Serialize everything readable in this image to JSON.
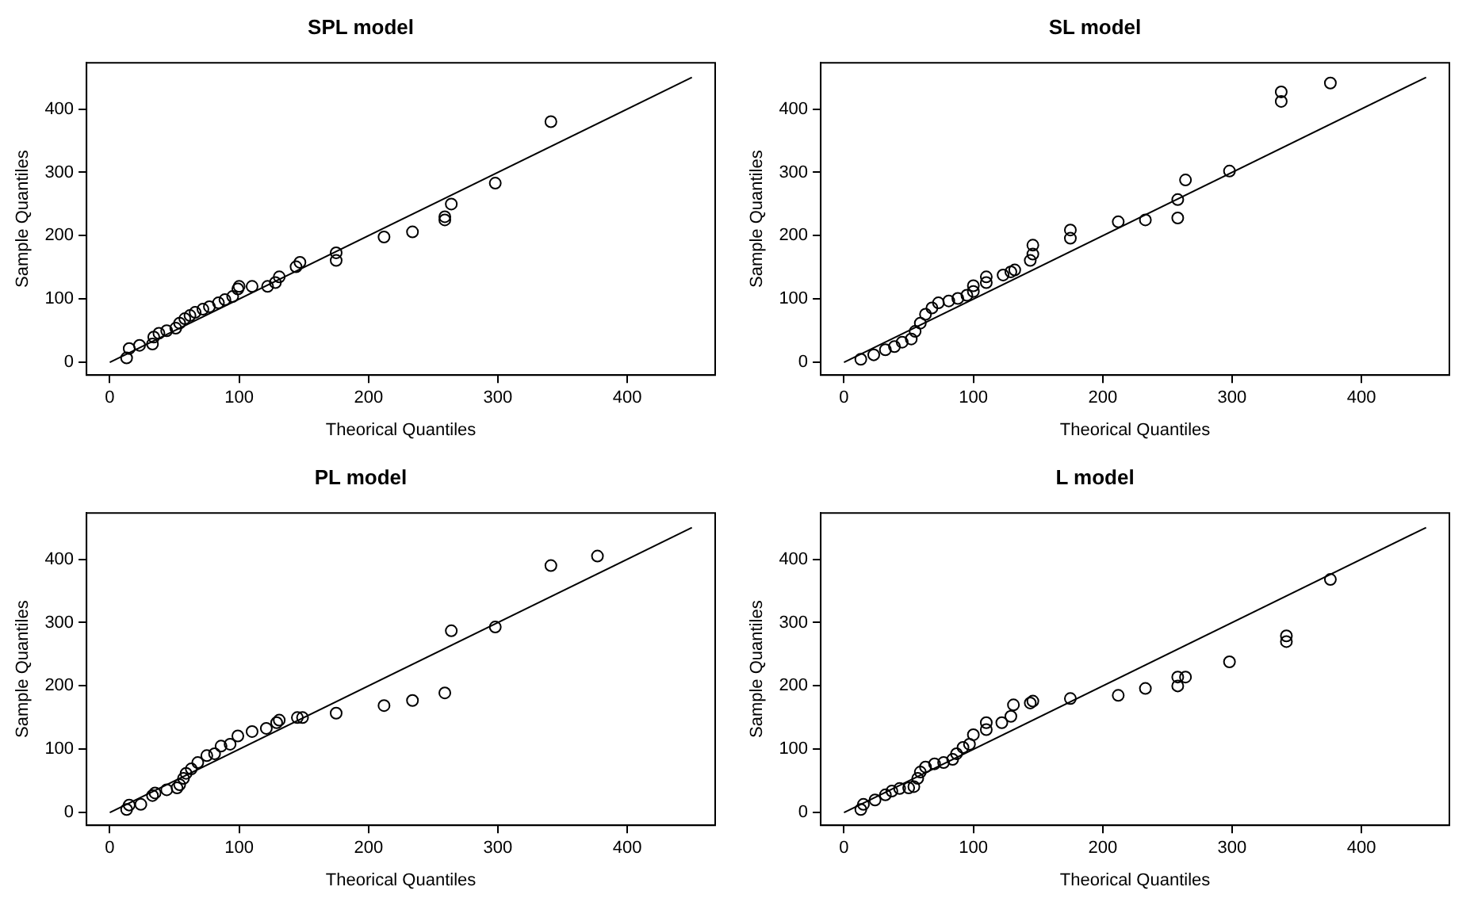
{
  "chart_data": [
    {
      "type": "scatter",
      "title": "SPL model",
      "xlabel": "Theorical Quantiles",
      "ylabel": "Sample Quantiles",
      "xlim": [
        -18,
        468
      ],
      "ylim": [
        -20,
        473
      ],
      "xticks": [
        0,
        100,
        200,
        300,
        400
      ],
      "yticks": [
        0,
        100,
        200,
        300,
        400
      ],
      "grid": false,
      "legend": false,
      "marker": "circle",
      "series": [
        {
          "color": "#000000",
          "x": [
            13,
            15,
            23,
            33,
            34,
            38,
            44,
            51,
            54,
            58,
            62,
            66,
            72,
            77,
            84,
            89,
            95,
            99,
            100,
            110,
            122,
            128,
            131,
            144,
            147,
            175,
            175,
            212,
            234,
            259,
            259,
            264,
            298,
            341
          ],
          "values": [
            7,
            22,
            27,
            29,
            40,
            46,
            50,
            54,
            62,
            69,
            74,
            79,
            84,
            88,
            94,
            99,
            104,
            116,
            120,
            120,
            120,
            126,
            135,
            151,
            158,
            173,
            161,
            198,
            206,
            225,
            230,
            250,
            283,
            380
          ]
        },
        {
          "type": "line",
          "marker": "none",
          "line_style": "solid",
          "color": "#000000",
          "x": [
            0,
            450
          ],
          "values": [
            0,
            450
          ]
        }
      ]
    },
    {
      "type": "scatter",
      "title": "SL model",
      "xlabel": "Theorical Quantiles",
      "ylabel": "Sample Quantiles",
      "xlim": [
        -18,
        468
      ],
      "ylim": [
        -20,
        473
      ],
      "xticks": [
        0,
        100,
        200,
        300,
        400
      ],
      "yticks": [
        0,
        100,
        200,
        300,
        400
      ],
      "grid": false,
      "legend": false,
      "marker": "circle",
      "series": [
        {
          "color": "#000000",
          "x": [
            13,
            23,
            32,
            39,
            45,
            52,
            55,
            59,
            63,
            68,
            73,
            81,
            88,
            95,
            100,
            100,
            110,
            110,
            123,
            129,
            132,
            144,
            146,
            146,
            175,
            175,
            212,
            233,
            258,
            258,
            264,
            298,
            338,
            338,
            376
          ],
          "values": [
            5,
            12,
            20,
            25,
            32,
            37,
            49,
            62,
            76,
            86,
            94,
            97,
            101,
            106,
            112,
            121,
            126,
            135,
            138,
            143,
            146,
            161,
            171,
            185,
            209,
            196,
            222,
            225,
            257,
            228,
            288,
            302,
            427,
            412,
            441
          ]
        },
        {
          "type": "line",
          "marker": "none",
          "line_style": "solid",
          "color": "#000000",
          "x": [
            0,
            450
          ],
          "values": [
            0,
            450
          ]
        }
      ]
    },
    {
      "type": "scatter",
      "title": "PL model",
      "xlabel": "Theorical Quantiles",
      "ylabel": "Sample Quantiles",
      "xlim": [
        -18,
        468
      ],
      "ylim": [
        -20,
        473
      ],
      "xticks": [
        0,
        100,
        200,
        300,
        400
      ],
      "yticks": [
        0,
        100,
        200,
        300,
        400
      ],
      "grid": false,
      "legend": false,
      "marker": "circle",
      "series": [
        {
          "color": "#000000",
          "x": [
            13,
            15,
            24,
            33,
            35,
            44,
            52,
            54,
            57,
            59,
            63,
            68,
            75,
            81,
            86,
            93,
            99,
            110,
            121,
            129,
            131,
            145,
            149,
            175,
            212,
            234,
            259,
            264,
            298,
            341,
            377
          ],
          "values": [
            5,
            12,
            13,
            27,
            31,
            36,
            39,
            44,
            54,
            62,
            69,
            79,
            90,
            93,
            105,
            108,
            121,
            128,
            133,
            142,
            146,
            150,
            150,
            157,
            169,
            177,
            189,
            287,
            293,
            390,
            405
          ]
        },
        {
          "type": "line",
          "marker": "none",
          "line_style": "solid",
          "color": "#000000",
          "x": [
            0,
            450
          ],
          "values": [
            0,
            450
          ]
        }
      ]
    },
    {
      "type": "scatter",
      "title": "L model",
      "xlabel": "Theorical Quantiles",
      "ylabel": "Sample Quantiles",
      "xlim": [
        -18,
        468
      ],
      "ylim": [
        -20,
        473
      ],
      "xticks": [
        0,
        100,
        200,
        300,
        400
      ],
      "yticks": [
        0,
        100,
        200,
        300,
        400
      ],
      "grid": false,
      "legend": false,
      "marker": "circle",
      "series": [
        {
          "color": "#000000",
          "x": [
            13,
            15,
            24,
            32,
            37,
            43,
            50,
            54,
            57,
            59,
            63,
            70,
            77,
            84,
            87,
            92,
            97,
            100,
            110,
            110,
            122,
            129,
            131,
            144,
            146,
            175,
            212,
            233,
            258,
            258,
            264,
            298,
            342,
            342,
            376
          ],
          "values": [
            5,
            13,
            20,
            28,
            34,
            38,
            39,
            41,
            54,
            64,
            72,
            77,
            79,
            84,
            93,
            103,
            108,
            123,
            131,
            142,
            142,
            152,
            170,
            173,
            176,
            180,
            185,
            196,
            200,
            214,
            214,
            238,
            270,
            279,
            368
          ]
        },
        {
          "type": "line",
          "marker": "none",
          "line_style": "solid",
          "color": "#000000",
          "x": [
            0,
            450
          ],
          "values": [
            0,
            450
          ]
        }
      ]
    }
  ]
}
